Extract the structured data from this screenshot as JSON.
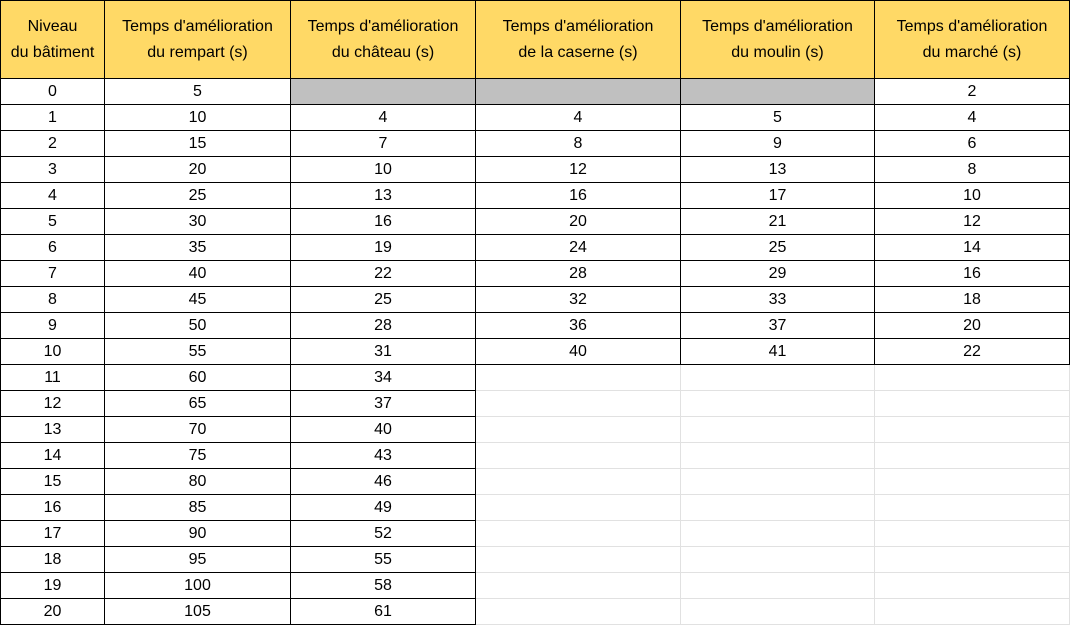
{
  "headers": [
    "Niveau\ndu bâtiment",
    "Temps d'amélioration\ndu rempart (s)",
    "Temps d'amélioration\ndu château (s)",
    "Temps d'amélioration\nde la caserne (s)",
    "Temps d'amélioration\ndu moulin (s)",
    "Temps d'amélioration\ndu marché (s)"
  ],
  "rows": [
    [
      "0",
      "5",
      null,
      null,
      null,
      "2"
    ],
    [
      "1",
      "10",
      "4",
      "4",
      "5",
      "4"
    ],
    [
      "2",
      "15",
      "7",
      "8",
      "9",
      "6"
    ],
    [
      "3",
      "20",
      "10",
      "12",
      "13",
      "8"
    ],
    [
      "4",
      "25",
      "13",
      "16",
      "17",
      "10"
    ],
    [
      "5",
      "30",
      "16",
      "20",
      "21",
      "12"
    ],
    [
      "6",
      "35",
      "19",
      "24",
      "25",
      "14"
    ],
    [
      "7",
      "40",
      "22",
      "28",
      "29",
      "16"
    ],
    [
      "8",
      "45",
      "25",
      "32",
      "33",
      "18"
    ],
    [
      "9",
      "50",
      "28",
      "36",
      "37",
      "20"
    ],
    [
      "10",
      "55",
      "31",
      "40",
      "41",
      "22"
    ],
    [
      "11",
      "60",
      "34",
      "",
      "",
      ""
    ],
    [
      "12",
      "65",
      "37",
      "",
      "",
      ""
    ],
    [
      "13",
      "70",
      "40",
      "",
      "",
      ""
    ],
    [
      "14",
      "75",
      "43",
      "",
      "",
      ""
    ],
    [
      "15",
      "80",
      "46",
      "",
      "",
      ""
    ],
    [
      "16",
      "85",
      "49",
      "",
      "",
      ""
    ],
    [
      "17",
      "90",
      "52",
      "",
      "",
      ""
    ],
    [
      "18",
      "95",
      "55",
      "",
      "",
      ""
    ],
    [
      "19",
      "100",
      "58",
      "",
      "",
      ""
    ],
    [
      "20",
      "105",
      "61",
      "",
      "",
      ""
    ]
  ]
}
